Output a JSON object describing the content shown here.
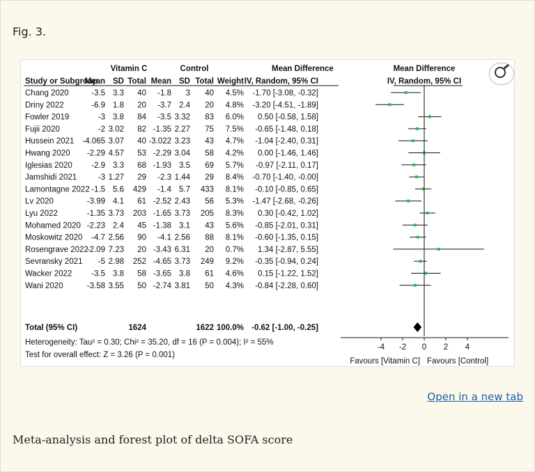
{
  "fig_label": "Fig. 3.",
  "open_link": "Open in a new tab",
  "caption": "Meta-analysis and forest plot of delta SOFA score",
  "icons": {
    "magnifier": "magnifier-icon"
  },
  "colors": {
    "point": "#2fb84a",
    "line": "#111111",
    "link": "#1a5fa8"
  },
  "chart_data": {
    "type": "table",
    "group_headers": {
      "treatment": "Vitamin C",
      "control": "Control",
      "md_text": "Mean Difference",
      "md_plot": "Mean Difference"
    },
    "columns": [
      "Study or Subgroup",
      "Mean",
      "SD",
      "Total",
      "Mean",
      "SD",
      "Total",
      "Weight",
      "IV, Random, 95% CI",
      "IV, Random, 95% CI"
    ],
    "rows": [
      {
        "study": "Chang 2020",
        "t_mean": "-3.5",
        "t_sd": "3.3",
        "t_total": "40",
        "c_mean": "-1.8",
        "c_sd": "3",
        "c_total": "40",
        "weight": "4.5%",
        "ci_text": "-1.70 [-3.08, -0.32]",
        "md": -1.7,
        "lo": -3.08,
        "hi": -0.32
      },
      {
        "study": "Driny 2022",
        "t_mean": "-6.9",
        "t_sd": "1.8",
        "t_total": "20",
        "c_mean": "-3.7",
        "c_sd": "2.4",
        "c_total": "20",
        "weight": "4.8%",
        "ci_text": "-3.20 [-4.51, -1.89]",
        "md": -3.2,
        "lo": -4.51,
        "hi": -1.89
      },
      {
        "study": "Fowler 2019",
        "t_mean": "-3",
        "t_sd": "3.8",
        "t_total": "84",
        "c_mean": "-3.5",
        "c_sd": "3.32",
        "c_total": "83",
        "weight": "6.0%",
        "ci_text": "0.50 [-0.58, 1.58]",
        "md": 0.5,
        "lo": -0.58,
        "hi": 1.58
      },
      {
        "study": "Fujii 2020",
        "t_mean": "-2",
        "t_sd": "3.02",
        "t_total": "82",
        "c_mean": "-1.35",
        "c_sd": "2.27",
        "c_total": "75",
        "weight": "7.5%",
        "ci_text": "-0.65 [-1.48, 0.18]",
        "md": -0.65,
        "lo": -1.48,
        "hi": 0.18
      },
      {
        "study": "Hussein 2021",
        "t_mean": "-4.065",
        "t_sd": "3.07",
        "t_total": "40",
        "c_mean": "-3.022",
        "c_sd": "3.23",
        "c_total": "43",
        "weight": "4.7%",
        "ci_text": "-1.04 [-2.40, 0.31]",
        "md": -1.04,
        "lo": -2.4,
        "hi": 0.31
      },
      {
        "study": "Hwang 2020",
        "t_mean": "-2.29",
        "t_sd": "4.57",
        "t_total": "53",
        "c_mean": "-2.29",
        "c_sd": "3.04",
        "c_total": "58",
        "weight": "4.2%",
        "ci_text": "0.00 [-1.46, 1.46]",
        "md": 0.0,
        "lo": -1.46,
        "hi": 1.46
      },
      {
        "study": "Iglesias 2020",
        "t_mean": "-2.9",
        "t_sd": "3.3",
        "t_total": "68",
        "c_mean": "-1.93",
        "c_sd": "3.5",
        "c_total": "69",
        "weight": "5.7%",
        "ci_text": "-0.97 [-2.11, 0.17]",
        "md": -0.97,
        "lo": -2.11,
        "hi": 0.17
      },
      {
        "study": "Jamshidi 2021",
        "t_mean": "-3",
        "t_sd": "1.27",
        "t_total": "29",
        "c_mean": "-2.3",
        "c_sd": "1.44",
        "c_total": "29",
        "weight": "8.4%",
        "ci_text": "-0.70 [-1.40, -0.00]",
        "md": -0.7,
        "lo": -1.4,
        "hi": 0.0
      },
      {
        "study": "Lamontagne 2022",
        "t_mean": "-1.5",
        "t_sd": "5.6",
        "t_total": "429",
        "c_mean": "-1.4",
        "c_sd": "5.7",
        "c_total": "433",
        "weight": "8.1%",
        "ci_text": "-0.10 [-0.85, 0.65]",
        "md": -0.1,
        "lo": -0.85,
        "hi": 0.65
      },
      {
        "study": "Lv 2020",
        "t_mean": "-3.99",
        "t_sd": "4.1",
        "t_total": "61",
        "c_mean": "-2.52",
        "c_sd": "2.43",
        "c_total": "56",
        "weight": "5.3%",
        "ci_text": "-1.47 [-2.68, -0.26]",
        "md": -1.47,
        "lo": -2.68,
        "hi": -0.26
      },
      {
        "study": "Lyu 2022",
        "t_mean": "-1.35",
        "t_sd": "3.73",
        "t_total": "203",
        "c_mean": "-1.65",
        "c_sd": "3.73",
        "c_total": "205",
        "weight": "8.3%",
        "ci_text": "0.30 [-0.42, 1.02]",
        "md": 0.3,
        "lo": -0.42,
        "hi": 1.02
      },
      {
        "study": "Mohamed 2020",
        "t_mean": "-2.23",
        "t_sd": "2.4",
        "t_total": "45",
        "c_mean": "-1.38",
        "c_sd": "3.1",
        "c_total": "43",
        "weight": "5.6%",
        "ci_text": "-0.85 [-2.01, 0.31]",
        "md": -0.85,
        "lo": -2.01,
        "hi": 0.31
      },
      {
        "study": "Moskowitz 2020",
        "t_mean": "-4.7",
        "t_sd": "2.56",
        "t_total": "90",
        "c_mean": "-4.1",
        "c_sd": "2.56",
        "c_total": "88",
        "weight": "8.1%",
        "ci_text": "-0.60 [-1.35, 0.15]",
        "md": -0.6,
        "lo": -1.35,
        "hi": 0.15
      },
      {
        "study": "Rosengrave 2022",
        "t_mean": "-2.09",
        "t_sd": "7.23",
        "t_total": "20",
        "c_mean": "-3.43",
        "c_sd": "6.31",
        "c_total": "20",
        "weight": "0.7%",
        "ci_text": "1.34 [-2.87, 5.55]",
        "md": 1.34,
        "lo": -2.87,
        "hi": 5.55
      },
      {
        "study": "Sevransky 2021",
        "t_mean": "-5",
        "t_sd": "2.98",
        "t_total": "252",
        "c_mean": "-4.65",
        "c_sd": "3.73",
        "c_total": "249",
        "weight": "9.2%",
        "ci_text": "-0.35 [-0.94, 0.24]",
        "md": -0.35,
        "lo": -0.94,
        "hi": 0.24
      },
      {
        "study": "Wacker 2022",
        "t_mean": "-3.5",
        "t_sd": "3.8",
        "t_total": "58",
        "c_mean": "-3.65",
        "c_sd": "3.8",
        "c_total": "61",
        "weight": "4.6%",
        "ci_text": "0.15 [-1.22, 1.52]",
        "md": 0.15,
        "lo": -1.22,
        "hi": 1.52
      },
      {
        "study": "Wani 2020",
        "t_mean": "-3.58",
        "t_sd": "3.55",
        "t_total": "50",
        "c_mean": "-2.74",
        "c_sd": "3.81",
        "c_total": "50",
        "weight": "4.3%",
        "ci_text": "-0.84 [-2.28, 0.60]",
        "md": -0.84,
        "lo": -2.28,
        "hi": 0.6
      }
    ],
    "total": {
      "label": "Total (95% CI)",
      "t_total": "1624",
      "c_total": "1622",
      "weight": "100.0%",
      "ci_text": "-0.62 [-1.00, -0.25]",
      "md": -0.62,
      "lo": -1.0,
      "hi": -0.25
    },
    "heterogeneity": "Heterogeneity: Tau² = 0.30; Chi² = 35.20, df = 16 (P = 0.004); I² = 55%",
    "overall_effect": "Test for overall effect: Z = 3.26 (P = 0.001)",
    "xlim": [
      -5,
      5
    ],
    "xticks": [
      -4,
      -2,
      0,
      2,
      4
    ],
    "favours_left": "Favours [Vitamin C]",
    "favours_right": "Favours [Control]"
  }
}
